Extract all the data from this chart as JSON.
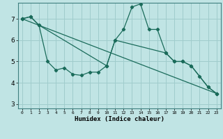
{
  "bg_color": "#c0e4e4",
  "grid_color": "#a0cccc",
  "line_color": "#1a6b5a",
  "xlabel": "Humidex (Indice chaleur)",
  "xlim": [
    -0.5,
    23.5
  ],
  "ylim": [
    2.8,
    7.75
  ],
  "yticks": [
    3,
    4,
    5,
    6,
    7
  ],
  "xticks": [
    0,
    1,
    2,
    3,
    4,
    5,
    6,
    7,
    8,
    9,
    10,
    11,
    12,
    13,
    14,
    15,
    16,
    17,
    18,
    19,
    20,
    21,
    22,
    23
  ],
  "line1_x": [
    0,
    1,
    2,
    3,
    4,
    5,
    6,
    7,
    8,
    9,
    10,
    11,
    12,
    13,
    14,
    15,
    16,
    17,
    18,
    19,
    20,
    21,
    22,
    23
  ],
  "line1_y": [
    7.0,
    7.1,
    6.7,
    5.0,
    4.6,
    4.7,
    4.4,
    4.35,
    4.5,
    4.5,
    4.8,
    6.0,
    6.5,
    7.55,
    7.7,
    6.5,
    6.5,
    5.4,
    5.0,
    5.0,
    4.8,
    4.3,
    3.8,
    3.5
  ],
  "line2_x": [
    0,
    1,
    2,
    10,
    11,
    17,
    18,
    19,
    20,
    22,
    23
  ],
  "line2_y": [
    7.0,
    7.1,
    6.7,
    4.8,
    6.0,
    5.4,
    5.0,
    5.0,
    4.8,
    3.8,
    3.5
  ],
  "line3_x": [
    0,
    23
  ],
  "line3_y": [
    7.0,
    3.5
  ]
}
